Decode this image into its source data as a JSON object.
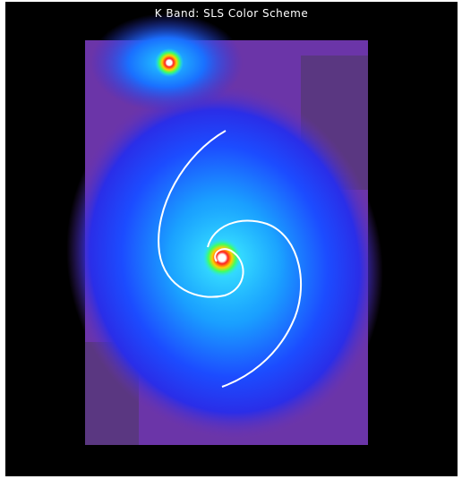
{
  "title": "K Band: SLS Color Scheme"
}
